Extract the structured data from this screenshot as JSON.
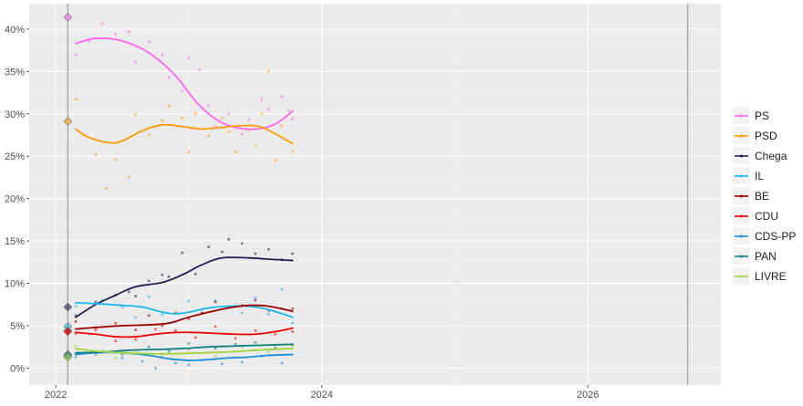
{
  "chart_data": {
    "type": "line",
    "title": "",
    "xlabel": "",
    "ylabel": "",
    "x_ticks": [
      "2022",
      "2024",
      "2026"
    ],
    "y_ticks": [
      "0%",
      "5%",
      "10%",
      "15%",
      "20%",
      "25%",
      "30%",
      "35%",
      "40%"
    ],
    "xlim": [
      2021.8,
      2027.0
    ],
    "ylim": [
      -2,
      43
    ],
    "vertical_lines": [
      2022.09,
      2026.75
    ],
    "grid": true,
    "legend_position": "right",
    "series": [
      {
        "name": "PS",
        "color": "#ff66ee",
        "election": 41.4,
        "trend": [
          [
            2022.15,
            38.3
          ],
          [
            2022.3,
            38.9
          ],
          [
            2022.5,
            38.6
          ],
          [
            2022.7,
            37.2
          ],
          [
            2022.9,
            34.5
          ],
          [
            2023.05,
            31.5
          ],
          [
            2023.2,
            29.4
          ],
          [
            2023.35,
            28.4
          ],
          [
            2023.5,
            28.2
          ],
          [
            2023.65,
            28.8
          ],
          [
            2023.78,
            30.3
          ]
        ],
        "polls": [
          [
            2022.15,
            37.0
          ],
          [
            2022.25,
            38.6
          ],
          [
            2022.35,
            40.6
          ],
          [
            2022.45,
            39.4
          ],
          [
            2022.55,
            39.7
          ],
          [
            2022.6,
            36.1
          ],
          [
            2022.7,
            38.5
          ],
          [
            2022.8,
            37.0
          ],
          [
            2022.85,
            34.3
          ],
          [
            2022.95,
            32.7
          ],
          [
            2023.0,
            36.6
          ],
          [
            2023.08,
            35.2
          ],
          [
            2023.15,
            31.0
          ],
          [
            2023.2,
            28.5
          ],
          [
            2023.3,
            30.0
          ],
          [
            2023.4,
            27.6
          ],
          [
            2023.45,
            29.3
          ],
          [
            2023.55,
            31.7
          ],
          [
            2023.6,
            30.5
          ],
          [
            2023.7,
            32.0
          ],
          [
            2023.75,
            30.4
          ],
          [
            2023.78,
            29.4
          ]
        ]
      },
      {
        "name": "PSD",
        "color": "#ff9a0a",
        "election": 29.1,
        "trend": [
          [
            2022.15,
            28.2
          ],
          [
            2022.25,
            27.2
          ],
          [
            2022.4,
            26.6
          ],
          [
            2022.5,
            26.8
          ],
          [
            2022.65,
            28.0
          ],
          [
            2022.8,
            28.7
          ],
          [
            2022.95,
            28.5
          ],
          [
            2023.1,
            28.2
          ],
          [
            2023.25,
            28.4
          ],
          [
            2023.4,
            28.6
          ],
          [
            2023.55,
            28.4
          ],
          [
            2023.78,
            26.5
          ]
        ],
        "polls": [
          [
            2022.15,
            31.7
          ],
          [
            2022.3,
            25.2
          ],
          [
            2022.38,
            21.2
          ],
          [
            2022.45,
            24.6
          ],
          [
            2022.55,
            22.5
          ],
          [
            2022.6,
            29.9
          ],
          [
            2022.7,
            27.5
          ],
          [
            2022.8,
            29.2
          ],
          [
            2022.85,
            30.9
          ],
          [
            2022.95,
            29.5
          ],
          [
            2023.0,
            25.5
          ],
          [
            2023.05,
            30.0
          ],
          [
            2023.15,
            27.4
          ],
          [
            2023.25,
            29.5
          ],
          [
            2023.3,
            27.9
          ],
          [
            2023.35,
            25.5
          ],
          [
            2023.45,
            28.1
          ],
          [
            2023.5,
            26.2
          ],
          [
            2023.55,
            30.0
          ],
          [
            2023.6,
            35.0
          ],
          [
            2023.65,
            24.5
          ],
          [
            2023.7,
            28.6
          ],
          [
            2023.78,
            25.6
          ]
        ]
      },
      {
        "name": "Chega",
        "color": "#202050",
        "election": 7.2,
        "trend": [
          [
            2022.15,
            6.0
          ],
          [
            2022.3,
            7.5
          ],
          [
            2022.45,
            8.6
          ],
          [
            2022.6,
            9.6
          ],
          [
            2022.8,
            10.1
          ],
          [
            2022.95,
            11.0
          ],
          [
            2023.1,
            12.2
          ],
          [
            2023.25,
            13.0
          ],
          [
            2023.45,
            13.0
          ],
          [
            2023.65,
            12.8
          ],
          [
            2023.78,
            12.7
          ]
        ],
        "polls": [
          [
            2022.15,
            6.2
          ],
          [
            2022.3,
            7.8
          ],
          [
            2022.45,
            8.6
          ],
          [
            2022.55,
            9.0
          ],
          [
            2022.6,
            8.5
          ],
          [
            2022.7,
            10.3
          ],
          [
            2022.8,
            11.0
          ],
          [
            2022.85,
            10.8
          ],
          [
            2022.95,
            13.6
          ],
          [
            2023.05,
            11.1
          ],
          [
            2023.15,
            14.3
          ],
          [
            2023.25,
            13.7
          ],
          [
            2023.3,
            15.2
          ],
          [
            2023.4,
            14.7
          ],
          [
            2023.5,
            13.5
          ],
          [
            2023.6,
            14.0
          ],
          [
            2023.7,
            12.8
          ],
          [
            2023.78,
            13.5
          ]
        ]
      },
      {
        "name": "IL",
        "color": "#1ab7ea",
        "election": 4.9,
        "trend": [
          [
            2022.15,
            7.7
          ],
          [
            2022.3,
            7.6
          ],
          [
            2022.5,
            7.4
          ],
          [
            2022.65,
            7.2
          ],
          [
            2022.8,
            6.6
          ],
          [
            2022.9,
            6.4
          ],
          [
            2023.0,
            6.6
          ],
          [
            2023.15,
            7.1
          ],
          [
            2023.3,
            7.3
          ],
          [
            2023.45,
            7.3
          ],
          [
            2023.6,
            6.9
          ],
          [
            2023.78,
            6.0
          ]
        ],
        "polls": [
          [
            2022.15,
            7.3
          ],
          [
            2022.35,
            8.0
          ],
          [
            2022.5,
            7.2
          ],
          [
            2022.6,
            6.0
          ],
          [
            2022.7,
            8.4
          ],
          [
            2022.8,
            6.3
          ],
          [
            2022.9,
            5.4
          ],
          [
            2023.0,
            7.9
          ],
          [
            2023.1,
            6.5
          ],
          [
            2023.2,
            8.0
          ],
          [
            2023.3,
            7.2
          ],
          [
            2023.4,
            6.5
          ],
          [
            2023.5,
            8.3
          ],
          [
            2023.6,
            6.4
          ],
          [
            2023.7,
            9.3
          ],
          [
            2023.78,
            5.3
          ]
        ]
      },
      {
        "name": "BE",
        "color": "#9b0000",
        "election": 4.4,
        "trend": [
          [
            2022.15,
            4.6
          ],
          [
            2022.3,
            4.8
          ],
          [
            2022.5,
            5.0
          ],
          [
            2022.7,
            5.1
          ],
          [
            2022.85,
            5.3
          ],
          [
            2023.0,
            6.0
          ],
          [
            2023.15,
            6.6
          ],
          [
            2023.3,
            7.1
          ],
          [
            2023.45,
            7.4
          ],
          [
            2023.6,
            7.3
          ],
          [
            2023.78,
            6.7
          ]
        ],
        "polls": [
          [
            2022.15,
            5.5
          ],
          [
            2022.3,
            4.8
          ],
          [
            2022.45,
            5.3
          ],
          [
            2022.6,
            4.5
          ],
          [
            2022.7,
            6.2
          ],
          [
            2022.8,
            5.0
          ],
          [
            2022.9,
            6.5
          ],
          [
            2023.0,
            5.8
          ],
          [
            2023.1,
            6.5
          ],
          [
            2023.2,
            7.8
          ],
          [
            2023.3,
            7.2
          ],
          [
            2023.4,
            7.4
          ],
          [
            2023.5,
            8.0
          ],
          [
            2023.6,
            6.8
          ],
          [
            2023.7,
            7.0
          ],
          [
            2023.78,
            7.0
          ]
        ]
      },
      {
        "name": "CDU",
        "color": "#ee0000",
        "election": 4.3,
        "trend": [
          [
            2022.15,
            4.2
          ],
          [
            2022.3,
            4.0
          ],
          [
            2022.45,
            3.7
          ],
          [
            2022.6,
            3.7
          ],
          [
            2022.75,
            4.0
          ],
          [
            2022.9,
            4.2
          ],
          [
            2023.05,
            4.2
          ],
          [
            2023.2,
            4.1
          ],
          [
            2023.35,
            4.0
          ],
          [
            2023.5,
            4.0
          ],
          [
            2023.65,
            4.3
          ],
          [
            2023.78,
            4.7
          ]
        ],
        "polls": [
          [
            2022.15,
            4.1
          ],
          [
            2022.3,
            4.5
          ],
          [
            2022.45,
            3.2
          ],
          [
            2022.6,
            3.4
          ],
          [
            2022.75,
            4.6
          ],
          [
            2022.9,
            4.4
          ],
          [
            2023.05,
            3.6
          ],
          [
            2023.2,
            4.9
          ],
          [
            2023.35,
            3.5
          ],
          [
            2023.5,
            4.4
          ],
          [
            2023.65,
            4.0
          ],
          [
            2023.78,
            4.3
          ]
        ]
      },
      {
        "name": "CDS-PP",
        "color": "#1a8fdc",
        "election": 1.6,
        "trend": [
          [
            2022.15,
            1.6
          ],
          [
            2022.3,
            1.8
          ],
          [
            2022.5,
            1.8
          ],
          [
            2022.7,
            1.5
          ],
          [
            2022.85,
            1.1
          ],
          [
            2023.0,
            0.9
          ],
          [
            2023.15,
            1.0
          ],
          [
            2023.3,
            1.2
          ],
          [
            2023.45,
            1.3
          ],
          [
            2023.6,
            1.5
          ],
          [
            2023.78,
            1.6
          ]
        ],
        "polls": [
          [
            2022.15,
            1.3
          ],
          [
            2022.3,
            1.6
          ],
          [
            2022.5,
            1.2
          ],
          [
            2022.65,
            0.8
          ],
          [
            2022.75,
            0.0
          ],
          [
            2022.9,
            0.6
          ],
          [
            2023.0,
            0.4
          ],
          [
            2023.1,
            0.9
          ],
          [
            2023.25,
            0.5
          ],
          [
            2023.4,
            0.7
          ],
          [
            2023.55,
            1.4
          ],
          [
            2023.7,
            0.6
          ],
          [
            2023.78,
            2.7
          ]
        ]
      },
      {
        "name": "PAN",
        "color": "#127f7f",
        "election": 1.5,
        "trend": [
          [
            2022.15,
            1.8
          ],
          [
            2022.35,
            1.9
          ],
          [
            2022.55,
            2.1
          ],
          [
            2022.75,
            2.2
          ],
          [
            2022.95,
            2.3
          ],
          [
            2023.15,
            2.5
          ],
          [
            2023.35,
            2.6
          ],
          [
            2023.55,
            2.7
          ],
          [
            2023.78,
            2.8
          ]
        ],
        "polls": [
          [
            2022.15,
            1.7
          ],
          [
            2022.35,
            2.0
          ],
          [
            2022.5,
            1.6
          ],
          [
            2022.7,
            2.5
          ],
          [
            2022.85,
            2.0
          ],
          [
            2023.0,
            2.9
          ],
          [
            2023.2,
            2.3
          ],
          [
            2023.35,
            2.8
          ],
          [
            2023.5,
            3.0
          ],
          [
            2023.65,
            2.4
          ],
          [
            2023.78,
            2.8
          ]
        ]
      },
      {
        "name": "LIVRE",
        "color": "#a3d43c",
        "election": 1.3,
        "trend": [
          [
            2022.15,
            2.3
          ],
          [
            2022.3,
            2.0
          ],
          [
            2022.5,
            1.8
          ],
          [
            2022.7,
            1.7
          ],
          [
            2022.9,
            1.7
          ],
          [
            2023.1,
            1.8
          ],
          [
            2023.3,
            1.9
          ],
          [
            2023.5,
            2.1
          ],
          [
            2023.78,
            2.3
          ]
        ],
        "polls": [
          [
            2022.15,
            2.6
          ],
          [
            2022.3,
            1.8
          ],
          [
            2022.45,
            1.2
          ],
          [
            2022.6,
            2.0
          ],
          [
            2022.8,
            1.5
          ],
          [
            2023.0,
            2.1
          ],
          [
            2023.2,
            1.4
          ],
          [
            2023.4,
            2.4
          ],
          [
            2023.6,
            1.9
          ],
          [
            2023.78,
            2.6
          ]
        ]
      }
    ]
  }
}
